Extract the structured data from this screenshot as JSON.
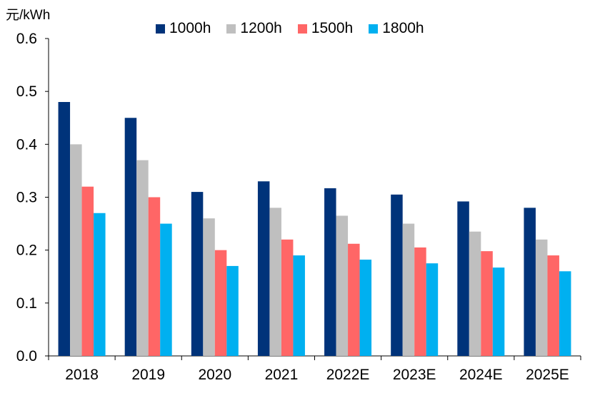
{
  "chart_data": {
    "type": "bar",
    "ylabel": "元/kWh",
    "xlabel": "",
    "title": "",
    "ylim": [
      0,
      0.6
    ],
    "yticks": [
      "0.0",
      "0.1",
      "0.2",
      "0.3",
      "0.4",
      "0.5",
      "0.6"
    ],
    "categories": [
      "2018",
      "2019",
      "2020",
      "2021",
      "2022E",
      "2023E",
      "2024E",
      "2025E"
    ],
    "series": [
      {
        "name": "1000h",
        "color": "#00337a",
        "values": [
          0.48,
          0.45,
          0.31,
          0.33,
          0.317,
          0.305,
          0.292,
          0.28
        ]
      },
      {
        "name": "1200h",
        "color": "#bfbfbf",
        "values": [
          0.4,
          0.37,
          0.26,
          0.28,
          0.265,
          0.25,
          0.235,
          0.22
        ]
      },
      {
        "name": "1500h",
        "color": "#ff6666",
        "values": [
          0.32,
          0.3,
          0.2,
          0.22,
          0.212,
          0.205,
          0.198,
          0.19
        ]
      },
      {
        "name": "1800h",
        "color": "#00b0f0",
        "values": [
          0.27,
          0.25,
          0.17,
          0.19,
          0.182,
          0.175,
          0.167,
          0.16
        ]
      }
    ],
    "legend_position": "top",
    "grid": false
  }
}
